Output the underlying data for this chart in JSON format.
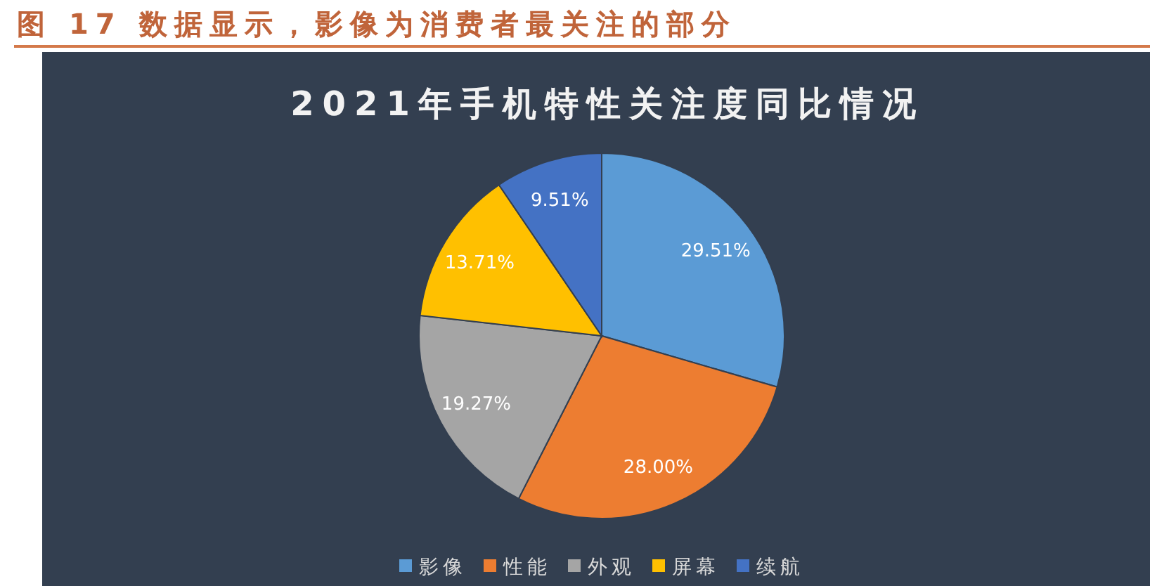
{
  "chart_data": {
    "type": "pie",
    "title": "2021年手机特性关注度同比情况",
    "annotations": [
      "图 17 数据显示，影像为消费者最关注的部分"
    ],
    "categories": [
      "影像",
      "性能",
      "外观",
      "屏幕",
      "续航"
    ],
    "values": [
      29.51,
      28.0,
      19.27,
      13.71,
      9.51
    ],
    "value_labels": [
      "29.51%",
      "28.00%",
      "19.27%",
      "13.71%",
      "9.51%"
    ],
    "colors": [
      "#5b9bd5",
      "#ed7d31",
      "#a5a5a5",
      "#ffc000",
      "#4472c4"
    ],
    "legend": "bottom"
  }
}
